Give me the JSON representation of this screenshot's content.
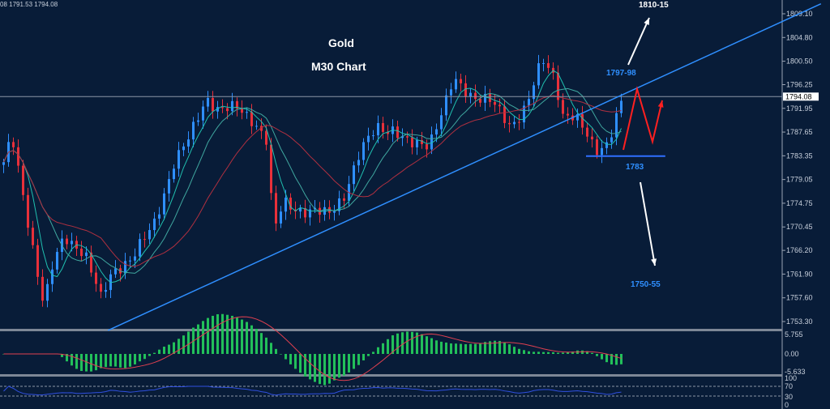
{
  "header": {
    "ohlc_text": "08 1791.53 1794.08"
  },
  "annotations": {
    "title": "Gold",
    "subtitle": "M30 Chart",
    "target_up": "1810-15",
    "resistance": "1797-98",
    "support": "1783",
    "target_down": "1750-55"
  },
  "colors": {
    "background": "#081c38",
    "bull": "#2f8fff",
    "bear": "#e8303a",
    "trendline": "#2f8fff",
    "ma_fast": "#20c0b0",
    "ma_slow": "#b03040",
    "macd_hist": "#22c05a",
    "scenario_arrow": "#ff2020",
    "target_arrow": "#ffffff"
  },
  "chart_data": [
    {
      "type": "candlestick",
      "title": "Gold M30",
      "ylim": [
        1751.0,
        1811.5
      ],
      "y_ticks": [
        "1809.10",
        "1804.80",
        "1800.50",
        "1796.25",
        "1791.95",
        "1787.65",
        "1783.35",
        "1779.05",
        "1774.75",
        "1770.45",
        "1766.20",
        "1761.90",
        "1757.60",
        "1753.30"
      ],
      "current_price": "1794.08",
      "close_path": {
        "x": [
          0,
          1.7,
          4.2,
          8.3,
          10,
          12.5,
          16.7,
          20,
          22.5,
          26.7,
          30.8,
          35,
          38.3,
          41.7,
          44.2,
          48.3,
          51.7,
          54.2,
          55.5,
          57.5,
          61.7,
          66.7,
          70,
          73.3,
          76.7,
          80,
          83.3,
          87.5,
          90.8,
          92.5,
          95.8,
          100,
          104.2,
          107.5,
          110.8,
          113.3,
          115,
          117.5,
          121.7,
          124.2,
          127.5
        ],
        "close": [
          1782.2,
          1786.6,
          1774.9,
          1756.5,
          1763.1,
          1768.3,
          1766.1,
          1757.3,
          1762.4,
          1765.3,
          1770.5,
          1782.2,
          1786.6,
          1794.0,
          1791.8,
          1791.8,
          1789.6,
          1785.9,
          1769.0,
          1774.9,
          1773.4,
          1772.7,
          1776.4,
          1783.7,
          1788.8,
          1788.1,
          1785.2,
          1785.9,
          1792.5,
          1796.9,
          1794.7,
          1793.2,
          1788.8,
          1792.5,
          1800.6,
          1797.7,
          1791.0,
          1790.3,
          1784.4,
          1785.9,
          1794.0
        ]
      },
      "trendline": {
        "from": [
          21.7,
          1751.7
        ],
        "to": [
          168.3,
          1810.9
        ]
      },
      "support_line": {
        "from": [
          120,
          1783.3
        ],
        "to": [
          136.3,
          1783.3
        ]
      },
      "indicators": [
        {
          "name": "MACD",
          "y_ticks": [
            "5.755",
            "0.00",
            "-5.633"
          ],
          "ylim": [
            -5.633,
            5.755
          ]
        },
        {
          "name": "RSI",
          "y_ticks": [
            "100",
            "70",
            "30",
            "0"
          ],
          "ylim": [
            0,
            100
          ],
          "levels": [
            70,
            30
          ]
        }
      ]
    }
  ]
}
